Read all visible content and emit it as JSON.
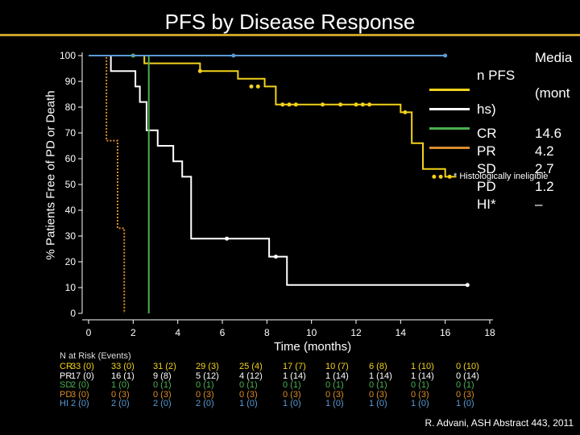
{
  "title": "PFS by Disease Response",
  "chart_data": {
    "type": "line",
    "xlabel": "Time (months)",
    "ylabel": "% Patients Free of PD or Death",
    "xlim": [
      -1,
      18
    ],
    "ylim": [
      0,
      100
    ],
    "xticks": [
      0,
      2,
      4,
      6,
      8,
      10,
      12,
      14,
      16,
      18
    ],
    "yticks": [
      0,
      10,
      20,
      30,
      40,
      50,
      60,
      70,
      80,
      90,
      100
    ],
    "series": [
      {
        "name": "CR",
        "color": "#f2d21b",
        "x": [
          0,
          2.5,
          2.5,
          5,
          5,
          6.7,
          6.7,
          7.9,
          7.9,
          8.4,
          8.4,
          14,
          14,
          14.5,
          14.5,
          15,
          15,
          16,
          16,
          16.5
        ],
        "y": [
          100,
          100,
          97,
          97,
          94,
          94,
          91,
          91,
          88,
          88,
          81,
          81,
          78,
          78,
          66,
          66,
          56,
          56,
          53,
          53
        ],
        "censor_x": [
          2,
          5,
          7.3,
          7.6,
          8.7,
          9.0,
          9.3,
          10.5,
          11.3,
          12.0,
          12.3,
          12.6,
          14.2,
          15.5,
          15.8,
          16.2
        ],
        "censor_y": [
          100,
          94,
          88,
          88,
          81,
          81,
          81,
          81,
          81,
          81,
          81,
          81,
          78,
          53,
          53,
          53
        ]
      },
      {
        "name": "PR",
        "color": "#ffffff",
        "x": [
          0,
          1,
          1,
          2.1,
          2.1,
          2.3,
          2.3,
          2.6,
          2.6,
          3.1,
          3.1,
          3.8,
          3.8,
          4.2,
          4.2,
          4.6,
          4.6,
          6.8,
          6.8,
          8.1,
          8.1,
          8.9,
          8.9,
          17
        ],
        "y": [
          100,
          100,
          94,
          94,
          88,
          88,
          82,
          82,
          71,
          71,
          65,
          65,
          59,
          59,
          53,
          53,
          29,
          29,
          29,
          29,
          22,
          22,
          11,
          11
        ],
        "censor_x": [
          6.2,
          8.4,
          17
        ],
        "censor_y": [
          29,
          22,
          11
        ]
      },
      {
        "name": "SD",
        "color": "#4caf50",
        "x": [
          0,
          2.7,
          2.7
        ],
        "y": [
          100,
          100,
          0
        ],
        "censor_x": [
          2
        ],
        "censor_y": [
          100
        ]
      },
      {
        "name": "PD",
        "color": "#d98c2b",
        "x": [
          0,
          0.8,
          0.8,
          1.3,
          1.3,
          1.6,
          1.6
        ],
        "y": [
          100,
          100,
          67,
          67,
          33,
          33,
          0
        ],
        "censor_x": [],
        "censor_y": []
      },
      {
        "name": "HI*",
        "color": "#5b9bd5",
        "x": [
          0,
          16
        ],
        "y": [
          100,
          100
        ],
        "censor_x": [
          6.5,
          16
        ],
        "censor_y": [
          100,
          100
        ]
      }
    ]
  },
  "legend": {
    "header_line1": "Media",
    "header_line2": "n PFS",
    "header_line3": "(mont",
    "header_line4": "hs)",
    "entries": [
      {
        "label": "CR",
        "value": "14.6",
        "color": "#f2d21b"
      },
      {
        "label": "PR",
        "value": "4.2",
        "color": "#ffffff"
      },
      {
        "label": "SD",
        "value": "2.7",
        "color": "#4caf50"
      },
      {
        "label": "PD",
        "value": "1.2",
        "color": "#d98c2b"
      },
      {
        "label": "HI*",
        "value": "–",
        "color": "#5b9bd5"
      }
    ]
  },
  "footnote": "* Histologically ineligible",
  "risk_table": {
    "title": "N at Risk (Events)",
    "rows": [
      {
        "label": "CR",
        "color": "#f2d21b",
        "cells": [
          "33 (0)",
          "33 (0)",
          "31 (2)",
          "29 (3)",
          "25 (4)",
          "17 (7)",
          "10 (7)",
          "6 (8)",
          "1 (10)",
          "0 (10)"
        ]
      },
      {
        "label": "PR",
        "color": "#ffffff",
        "cells": [
          "17 (0)",
          "16 (1)",
          "9 (8)",
          "5 (12)",
          "4 (12)",
          "1 (14)",
          "1 (14)",
          "1 (14)",
          "1 (14)",
          "0 (14)"
        ]
      },
      {
        "label": "SD",
        "color": "#4caf50",
        "cells": [
          "2 (0)",
          "1 (0)",
          "0 (1)",
          "0 (1)",
          "0 (1)",
          "0 (1)",
          "0 (1)",
          "0 (1)",
          "0 (1)",
          "0 (1)"
        ]
      },
      {
        "label": "PD",
        "color": "#d98c2b",
        "cells": [
          "3 (0)",
          "0 (3)",
          "0 (3)",
          "0 (3)",
          "0 (3)",
          "0 (3)",
          "0 (3)",
          "0 (3)",
          "0 (3)",
          "0 (3)"
        ]
      },
      {
        "label": "HI",
        "color": "#5b9bd5",
        "cells": [
          "2 (0)",
          "2 (0)",
          "2 (0)",
          "2 (0)",
          "1 (0)",
          "1 (0)",
          "1 (0)",
          "1 (0)",
          "1 (0)",
          "1 (0)"
        ]
      }
    ]
  },
  "source": "R. Advani, ASH Abstract 443, 2011"
}
